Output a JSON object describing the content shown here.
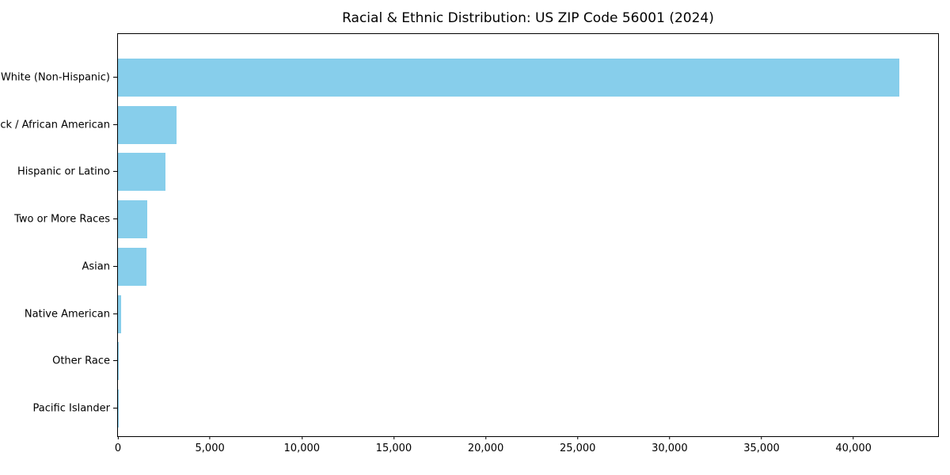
{
  "chart_data": {
    "type": "bar",
    "orientation": "horizontal",
    "title": "Racial & Ethnic Distribution: US ZIP Code 56001 (2024)",
    "categories": [
      "White (Non-Hispanic)",
      "Black / African American",
      "Hispanic or Latino",
      "Two or More Races",
      "Asian",
      "Native American",
      "Other Race",
      "Pacific Islander"
    ],
    "values": [
      42500,
      3200,
      2600,
      1600,
      1550,
      170,
      60,
      20
    ],
    "xlabel": "",
    "ylabel": "",
    "xlim": [
      0,
      44600
    ],
    "xticks": [
      0,
      5000,
      10000,
      15000,
      20000,
      25000,
      30000,
      35000,
      40000
    ],
    "xtick_labels": [
      "0",
      "5,000",
      "10,000",
      "15,000",
      "20,000",
      "25,000",
      "30,000",
      "35,000",
      "40,000"
    ],
    "bar_color": "#87CEEB",
    "grid": false,
    "legend_position": "none"
  }
}
